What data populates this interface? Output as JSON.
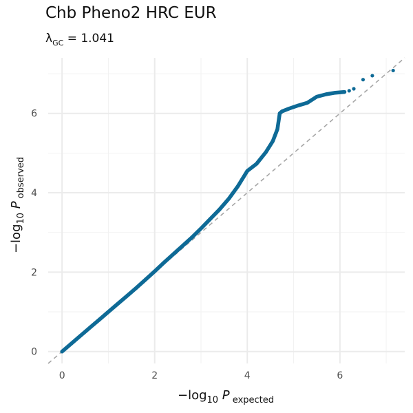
{
  "chart_data": {
    "type": "scatter",
    "title": "Chb Pheno2 HRC EUR",
    "subtitle": {
      "symbol": "λ",
      "subscript": "GC",
      "value": "= 1.041"
    },
    "xlabel": {
      "prefix": "−log",
      "base": "10",
      "var": "P",
      "subscript": "expected"
    },
    "ylabel": {
      "prefix": "−log",
      "base": "10",
      "var": "P",
      "subscript": "observed"
    },
    "xlim": [
      -0.3,
      7.4
    ],
    "ylim": [
      -0.3,
      7.4
    ],
    "x_ticks": [
      0,
      2,
      4,
      6
    ],
    "y_ticks": [
      0,
      2,
      4,
      6
    ],
    "grid": true,
    "reference_line": {
      "from": [
        -0.3,
        -0.3
      ],
      "to": [
        7.4,
        7.4
      ],
      "style": "dashed",
      "color": "#a6a6a6"
    },
    "point_color": "#0e6a96",
    "points": [
      [
        0.0,
        0.0
      ],
      [
        0.2,
        0.2
      ],
      [
        0.4,
        0.4
      ],
      [
        0.6,
        0.6
      ],
      [
        0.8,
        0.8
      ],
      [
        1.0,
        1.0
      ],
      [
        1.2,
        1.2
      ],
      [
        1.4,
        1.4
      ],
      [
        1.6,
        1.6
      ],
      [
        1.8,
        1.81
      ],
      [
        2.0,
        2.02
      ],
      [
        2.2,
        2.24
      ],
      [
        2.4,
        2.45
      ],
      [
        2.6,
        2.66
      ],
      [
        2.8,
        2.87
      ],
      [
        3.0,
        3.1
      ],
      [
        3.2,
        3.34
      ],
      [
        3.4,
        3.58
      ],
      [
        3.6,
        3.85
      ],
      [
        3.8,
        4.17
      ],
      [
        4.0,
        4.55
      ],
      [
        4.2,
        4.73
      ],
      [
        4.4,
        5.02
      ],
      [
        4.55,
        5.3
      ],
      [
        4.65,
        5.6
      ],
      [
        4.7,
        6.0
      ],
      [
        4.75,
        6.05
      ],
      [
        4.9,
        6.12
      ],
      [
        5.1,
        6.2
      ],
      [
        5.3,
        6.27
      ],
      [
        5.5,
        6.42
      ],
      [
        5.7,
        6.48
      ],
      [
        5.9,
        6.52
      ],
      [
        6.1,
        6.54
      ],
      [
        6.2,
        6.57
      ],
      [
        6.3,
        6.62
      ],
      [
        6.5,
        6.85
      ],
      [
        6.7,
        6.95
      ],
      [
        7.15,
        7.08
      ]
    ]
  }
}
